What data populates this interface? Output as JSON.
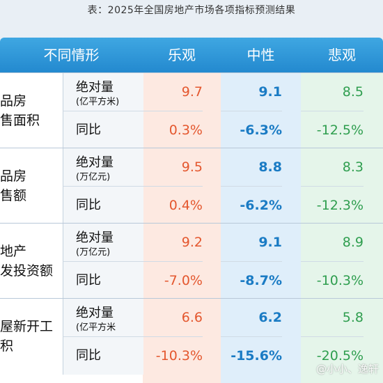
{
  "title": "表：2025年全国房地产市场各项指标预测结果",
  "header": {
    "condition": "不同情形",
    "optimistic": "乐观",
    "neutral": "中性",
    "pessimistic": "悲观"
  },
  "groups": [
    {
      "cat_line1": "品房",
      "cat_line2": "售面积",
      "abs_label": "绝对量",
      "abs_unit": "(亿平方米)",
      "yoy_label": "同比",
      "abs": {
        "optimistic": "9.7",
        "neutral": "9.1",
        "pessimistic": "8.5"
      },
      "yoy": {
        "optimistic": "0.3%",
        "neutral": "-6.3%",
        "pessimistic": "-12.5%"
      }
    },
    {
      "cat_line1": "品房",
      "cat_line2": "售额",
      "abs_label": "绝对量",
      "abs_unit": "(万亿元)",
      "yoy_label": "同比",
      "abs": {
        "optimistic": "9.5",
        "neutral": "8.8",
        "pessimistic": "8.3"
      },
      "yoy": {
        "optimistic": "0.4%",
        "neutral": "-6.2%",
        "pessimistic": "-12.3%"
      }
    },
    {
      "cat_line1": "地产",
      "cat_line2": "发投资额",
      "abs_label": "绝对量",
      "abs_unit": "(万亿元)",
      "yoy_label": "同比",
      "abs": {
        "optimistic": "9.2",
        "neutral": "9.1",
        "pessimistic": "8.9"
      },
      "yoy": {
        "optimistic": "-7.0%",
        "neutral": "-8.7%",
        "pessimistic": "-10.3%"
      }
    },
    {
      "cat_line1": "屋新开工",
      "cat_line2": "积",
      "abs_label": "绝对量",
      "abs_unit": "(亿平方米",
      "yoy_label": "同比",
      "abs": {
        "optimistic": "6.6",
        "neutral": "6.2",
        "pessimistic": "5.8"
      },
      "yoy": {
        "optimistic": "-10.3%",
        "neutral": "-15.6%",
        "pessimistic": "-20.5%"
      }
    }
  ],
  "watermark": "@小小、逸轩",
  "colors": {
    "header": "#2389cf",
    "optimistic_text": "#e4572e",
    "neutral_text": "#1a7bc4",
    "pessimistic_text": "#2f9e4f"
  }
}
